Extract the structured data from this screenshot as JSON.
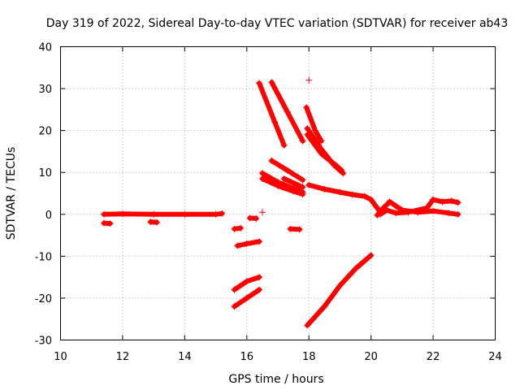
{
  "chart_data": {
    "type": "scatter",
    "title": "Day 319 of 2022, Sidereal Day-to-day VTEC variation (SDTVAR) for receiver ab43",
    "xlabel": "GPS time / hours",
    "ylabel": "SDTVAR / TECUs",
    "xlim": [
      10,
      24
    ],
    "ylim": [
      -30,
      40
    ],
    "xticks": [
      10,
      12,
      14,
      16,
      18,
      20,
      22,
      24
    ],
    "yticks": [
      -30,
      -20,
      -10,
      0,
      10,
      20,
      30,
      40
    ],
    "grid": true,
    "marker": "+",
    "color": "#ff0000",
    "series": [
      {
        "name": "arc-1",
        "points": [
          [
            11.4,
            0.0
          ],
          [
            12.0,
            0.1
          ],
          [
            13.0,
            0.0
          ],
          [
            14.0,
            0.0
          ],
          [
            15.0,
            0.0
          ],
          [
            15.2,
            0.2
          ]
        ]
      },
      {
        "name": "arc-2",
        "points": [
          [
            11.4,
            -2.1
          ],
          [
            11.6,
            -2.2
          ]
        ]
      },
      {
        "name": "arc-3",
        "points": [
          [
            12.9,
            -1.8
          ],
          [
            13.1,
            -1.9
          ]
        ]
      },
      {
        "name": "arc-4",
        "points": [
          [
            16.4,
            31.3
          ],
          [
            16.9,
            22.0
          ],
          [
            17.2,
            16.5
          ]
        ]
      },
      {
        "name": "arc-5",
        "points": [
          [
            16.8,
            31.5
          ],
          [
            17.3,
            24.5
          ],
          [
            17.8,
            17.5
          ]
        ]
      },
      {
        "name": "arc-6",
        "points": [
          [
            17.92,
            25.5
          ],
          [
            18.2,
            20.0
          ],
          [
            18.4,
            17.5
          ]
        ]
      },
      {
        "name": "arc-7",
        "points": [
          [
            17.95,
            20.5
          ],
          [
            18.4,
            15.5
          ],
          [
            18.8,
            11.8
          ],
          [
            19.1,
            9.8
          ]
        ]
      },
      {
        "name": "arc-8",
        "points": [
          [
            17.95,
            19.0
          ],
          [
            18.4,
            14.5
          ],
          [
            18.9,
            11.5
          ],
          [
            19.05,
            10.5
          ]
        ]
      },
      {
        "name": "arc-9",
        "points": [
          [
            18.0,
            32.0
          ]
        ]
      },
      {
        "name": "arc-10",
        "points": [
          [
            16.5,
            9.8
          ],
          [
            17.0,
            7.7
          ],
          [
            17.5,
            6.2
          ],
          [
            17.8,
            5.3
          ]
        ]
      },
      {
        "name": "arc-11",
        "points": [
          [
            16.5,
            8.5
          ],
          [
            17.0,
            6.8
          ],
          [
            17.5,
            5.5
          ],
          [
            17.8,
            4.8
          ]
        ]
      },
      {
        "name": "arc-12",
        "points": [
          [
            16.8,
            12.8
          ],
          [
            17.3,
            10.5
          ],
          [
            17.8,
            8.2
          ]
        ]
      },
      {
        "name": "arc-13",
        "points": [
          [
            17.2,
            8.5
          ],
          [
            17.8,
            6.5
          ]
        ]
      },
      {
        "name": "arc-14",
        "points": [
          [
            18.0,
            7.0
          ],
          [
            18.5,
            6.0
          ],
          [
            19.0,
            5.3
          ],
          [
            19.4,
            4.7
          ],
          [
            19.8,
            4.3
          ],
          [
            20.0,
            3.5
          ],
          [
            20.2,
            1.5
          ],
          [
            20.3,
            0.5
          ]
        ]
      },
      {
        "name": "arc-15",
        "points": [
          [
            20.2,
            -0.2
          ],
          [
            20.4,
            1.5
          ],
          [
            20.6,
            3.0
          ],
          [
            20.8,
            2.0
          ],
          [
            21.0,
            1.0
          ],
          [
            21.5,
            0.5
          ],
          [
            22.0,
            0.8
          ],
          [
            22.5,
            0.3
          ],
          [
            22.8,
            0.0
          ]
        ]
      },
      {
        "name": "arc-16",
        "points": [
          [
            20.3,
            0.0
          ],
          [
            20.5,
            1.0
          ],
          [
            20.8,
            0.3
          ],
          [
            21.2,
            0.5
          ],
          [
            21.8,
            1.5
          ],
          [
            22.0,
            3.5
          ],
          [
            22.3,
            3.0
          ],
          [
            22.6,
            3.2
          ],
          [
            22.8,
            2.8
          ]
        ]
      },
      {
        "name": "arc-17",
        "points": [
          [
            15.6,
            -3.5
          ],
          [
            15.8,
            -3.3
          ]
        ]
      },
      {
        "name": "arc-18",
        "points": [
          [
            16.1,
            -0.9
          ],
          [
            16.3,
            -1.0
          ]
        ]
      },
      {
        "name": "arc-19",
        "points": [
          [
            16.5,
            0.5
          ]
        ]
      },
      {
        "name": "arc-20",
        "points": [
          [
            17.4,
            -3.5
          ],
          [
            17.7,
            -3.6
          ]
        ]
      },
      {
        "name": "arc-21",
        "points": [
          [
            15.7,
            -7.5
          ],
          [
            16.0,
            -7.0
          ],
          [
            16.4,
            -6.5
          ]
        ]
      },
      {
        "name": "arc-22",
        "points": [
          [
            15.6,
            -18.0
          ],
          [
            16.0,
            -16.0
          ],
          [
            16.4,
            -15.0
          ]
        ]
      },
      {
        "name": "arc-23",
        "points": [
          [
            15.6,
            -22.0
          ],
          [
            16.0,
            -20.0
          ],
          [
            16.4,
            -18.0
          ]
        ]
      },
      {
        "name": "arc-24",
        "points": [
          [
            17.95,
            -26.5
          ],
          [
            18.5,
            -22.0
          ],
          [
            19.0,
            -17.0
          ],
          [
            19.5,
            -13.0
          ],
          [
            20.0,
            -9.8
          ]
        ]
      }
    ]
  }
}
